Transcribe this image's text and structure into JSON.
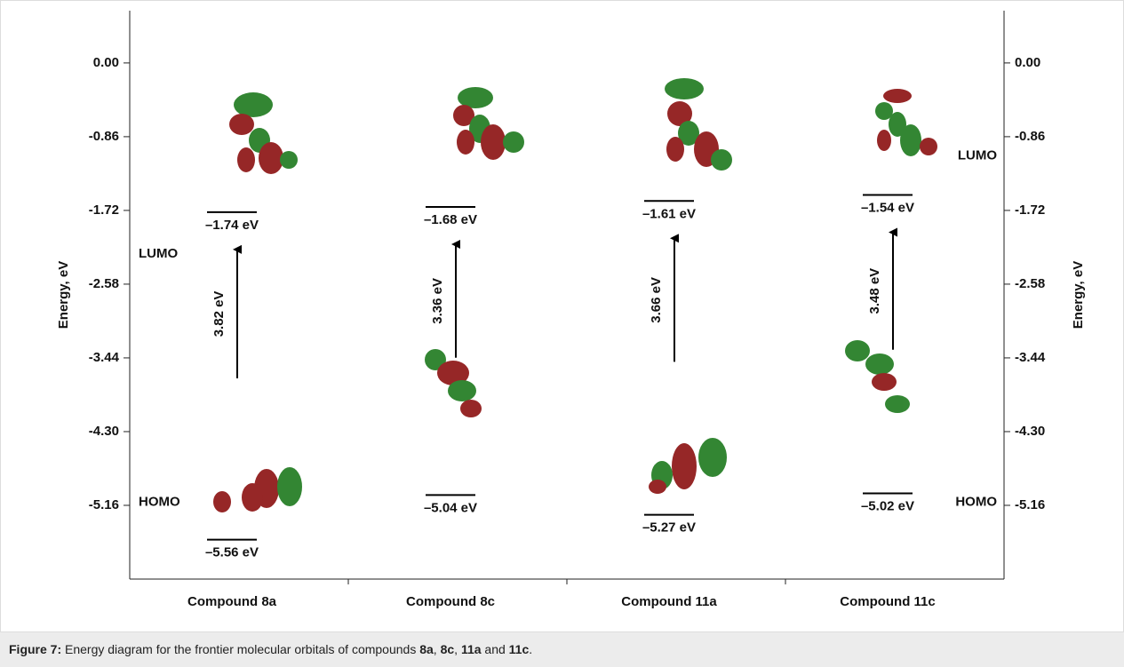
{
  "chart_data": {
    "type": "energy-diagram",
    "y_label": "Energy, eV",
    "ylim": [
      -6.02,
      0.61
    ],
    "yticks": [
      {
        "value": 0,
        "label": "0.00"
      },
      {
        "value": -0.86,
        "label": "-0.86"
      },
      {
        "value": -1.72,
        "label": "-1.72"
      },
      {
        "value": -2.58,
        "label": "-2.58"
      },
      {
        "value": -3.44,
        "label": "-3.44"
      },
      {
        "value": -4.3,
        "label": "-4.30"
      },
      {
        "value": -5.16,
        "label": "-5.16"
      }
    ],
    "categories": [
      "Compound 8a",
      "Compound 8c",
      "Compound 11a",
      "Compound 11c"
    ],
    "series": [
      {
        "name": "LUMO",
        "values": [
          -1.74,
          -1.68,
          -1.61,
          -1.54
        ],
        "value_labels": [
          "–1.74 eV",
          "–1.68 eV",
          "–1.61 eV",
          "–1.54 eV"
        ]
      },
      {
        "name": "HOMO",
        "values": [
          -5.56,
          -5.04,
          -5.27,
          -5.02
        ],
        "value_labels": [
          "–5.56 eV",
          "–5.04 eV",
          "–5.27 eV",
          "–5.02 eV"
        ]
      }
    ],
    "gaps": {
      "values": [
        3.82,
        3.36,
        3.66,
        3.48
      ],
      "value_labels": [
        "3.82 eV",
        "3.36 eV",
        "3.66 eV",
        "3.48 eV"
      ]
    }
  },
  "caption": {
    "label": "Figure 7:",
    "parts": [
      "Energy diagram for the frontier molecular orbitals of compounds ",
      "8a",
      ", ",
      "8c",
      ", ",
      "11a",
      " and ",
      "11c",
      "."
    ]
  }
}
